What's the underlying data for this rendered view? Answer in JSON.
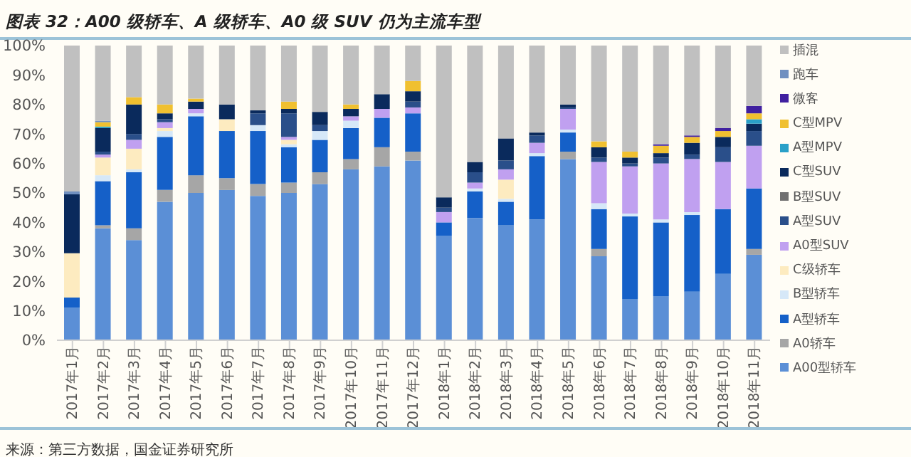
{
  "chart_data": {
    "type": "bar",
    "stacked": true,
    "title": "图表 32：A00 级轿车、A 级轿车、A0 级 SUV 仍为主流车型",
    "annotations": [
      "来源：第三方数据，国金证券研究所"
    ],
    "categories": [
      "2017年1月",
      "2017年2月",
      "2017年3月",
      "2017年4月",
      "2017年5月",
      "2017年6月",
      "2017年7月",
      "2017年8月",
      "2017年9月",
      "2017年10月",
      "2017年11月",
      "2017年12月",
      "2018年1月",
      "2018年2月",
      "2018年3月",
      "2018年4月",
      "2018年5月",
      "2018年6月",
      "2018年7月",
      "2018年8月",
      "2018年9月",
      "2018年10月",
      "2018年11月"
    ],
    "ylim": [
      0,
      100
    ],
    "yticks": [
      {
        "value": 0,
        "label": "0%"
      },
      {
        "value": 10,
        "label": "10%"
      },
      {
        "value": 20,
        "label": "20%"
      },
      {
        "value": 30,
        "label": "30%"
      },
      {
        "value": 40,
        "label": "40%"
      },
      {
        "value": 50,
        "label": "50%"
      },
      {
        "value": 60,
        "label": "60%"
      },
      {
        "value": 70,
        "label": "70%"
      },
      {
        "value": 80,
        "label": "80%"
      },
      {
        "value": 90,
        "label": "90%"
      },
      {
        "value": 100,
        "label": "100%"
      }
    ],
    "grid": false,
    "legend": "right",
    "series": [
      {
        "name": "A00型轿车",
        "color": "#5b8fd6",
        "values": [
          11,
          38,
          34,
          47,
          50,
          51,
          49,
          50,
          53,
          58,
          59,
          61,
          35.5,
          41.5,
          39,
          41,
          61.5,
          28.5,
          14,
          15,
          16.5,
          22.5,
          29
        ]
      },
      {
        "name": "A0轿车",
        "color": "#a6a6a6",
        "values": [
          null,
          1,
          4,
          4,
          6,
          4,
          4,
          3.5,
          4,
          3.5,
          6.5,
          3,
          null,
          0,
          0,
          0,
          2.5,
          2.5,
          0,
          0,
          0,
          0,
          2
        ]
      },
      {
        "name": "A型轿车",
        "color": "#1560c8",
        "values": [
          3.5,
          15,
          19,
          18,
          20,
          16,
          18,
          12,
          11,
          10.5,
          10,
          13,
          4.5,
          9,
          8,
          21.5,
          6.5,
          13.5,
          28,
          25,
          26,
          22,
          20.5
        ]
      },
      {
        "name": "B型轿车",
        "color": "#d6e8f8",
        "values": [
          null,
          2,
          1,
          2,
          1,
          0,
          2,
          1,
          3,
          2.5,
          0,
          0,
          0,
          1,
          1,
          1,
          1,
          2,
          1,
          1,
          1,
          0,
          0
        ]
      },
      {
        "name": "C级轿车",
        "color": "#fdebc0",
        "values": [
          15,
          6,
          7,
          1,
          0,
          4,
          0,
          1.5,
          0,
          0,
          0,
          0,
          0,
          0,
          6.5,
          0,
          0,
          0,
          0,
          0,
          0,
          0,
          0
        ]
      },
      {
        "name": "A0型SUV",
        "color": "#c0a0f0",
        "values": [
          0,
          1,
          3,
          2,
          1.5,
          0,
          0,
          1,
          0,
          1.5,
          3,
          2,
          3.5,
          2,
          3.5,
          3.5,
          7,
          14,
          16,
          19,
          18,
          16,
          14.5
        ]
      },
      {
        "name": "A型SUV",
        "color": "#2a4f8a",
        "values": [
          0,
          1,
          2,
          1,
          0,
          0,
          4,
          8,
          2,
          0,
          0,
          2,
          1.5,
          3.5,
          3,
          2.5,
          0.5,
          1.5,
          1,
          2,
          1.5,
          5,
          5
        ]
      },
      {
        "name": "B型SUV",
        "color": "#707070",
        "values": [
          0,
          0,
          0,
          0,
          0,
          0,
          0,
          0,
          0,
          0,
          0,
          0,
          0,
          0,
          0,
          0,
          0,
          0,
          0,
          0,
          0,
          0,
          0
        ]
      },
      {
        "name": "C型SUV",
        "color": "#0a2a5c",
        "values": [
          20,
          8,
          10,
          2,
          2.5,
          5,
          1,
          1.5,
          4.5,
          2.5,
          5,
          3.5,
          3.5,
          3.5,
          7.5,
          1,
          1,
          3.5,
          2,
          1.5,
          4,
          3.5,
          2.5
        ]
      },
      {
        "name": "A型MPV",
        "color": "#2aa0c8",
        "values": [
          0,
          0.5,
          0,
          0,
          0,
          0,
          0,
          0,
          0,
          0,
          0,
          0,
          0,
          0,
          0,
          0,
          0,
          0,
          0,
          0,
          0,
          0,
          1.5
        ]
      },
      {
        "name": "C型MPV",
        "color": "#f0c030",
        "values": [
          0,
          1.5,
          2.5,
          3,
          1,
          0,
          0,
          2.5,
          0,
          1.5,
          0,
          3.5,
          0,
          0,
          0,
          0,
          0,
          2,
          2,
          2.5,
          2,
          2,
          2
        ]
      },
      {
        "name": "微客",
        "color": "#4020a0",
        "values": [
          0,
          0,
          0,
          0,
          0,
          0,
          0,
          0,
          0,
          0,
          0,
          0,
          0,
          0,
          0,
          0,
          0,
          0,
          0,
          0.5,
          0.5,
          1,
          2.5
        ]
      },
      {
        "name": "跑车",
        "color": "#7090c0",
        "values": [
          1,
          0.5,
          0,
          0,
          0,
          0,
          0,
          0,
          0,
          0,
          0,
          0,
          0,
          0,
          0,
          0,
          0,
          0,
          0,
          0,
          0,
          0,
          0
        ]
      },
      {
        "name": "插混",
        "color": "#c0c0c0",
        "values": [
          49.5,
          25.5,
          17.5,
          20,
          18,
          20,
          22,
          19,
          22.5,
          20,
          16.5,
          12,
          51.5,
          39.5,
          31.5,
          29.5,
          20,
          32.5,
          36,
          33.5,
          30.5,
          28,
          20.5
        ]
      }
    ]
  }
}
